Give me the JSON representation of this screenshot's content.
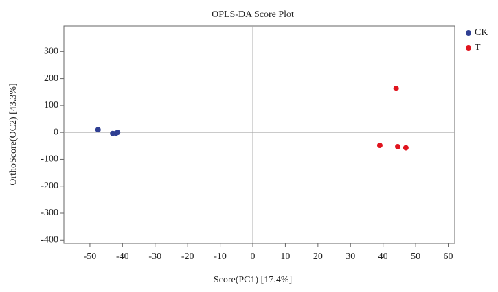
{
  "chart_data": {
    "type": "scatter",
    "title": "OPLS-DA Score Plot",
    "xlabel": "Score(PC1) [17.4%]",
    "ylabel": "OrthoScore(OC2) [43.3%]",
    "xlim": [
      -58,
      62
    ],
    "ylim": [
      -412,
      395
    ],
    "xticks": [
      -50,
      -40,
      -30,
      -20,
      -10,
      0,
      10,
      20,
      30,
      40,
      50,
      60
    ],
    "yticks": [
      -400,
      -300,
      -200,
      -100,
      0,
      100,
      200,
      300
    ],
    "zero_lines": true,
    "legend": "outside right",
    "series": [
      {
        "name": "CK",
        "color": "#2f3f93",
        "x": [
          -47.5,
          -43,
          -42,
          -41.5
        ],
        "values": [
          10,
          -4,
          -3,
          0
        ]
      },
      {
        "name": "T",
        "color": "#e0141e",
        "x": [
          44,
          39,
          44.5,
          47
        ],
        "values": [
          163,
          -48,
          -53,
          -57
        ]
      }
    ]
  }
}
